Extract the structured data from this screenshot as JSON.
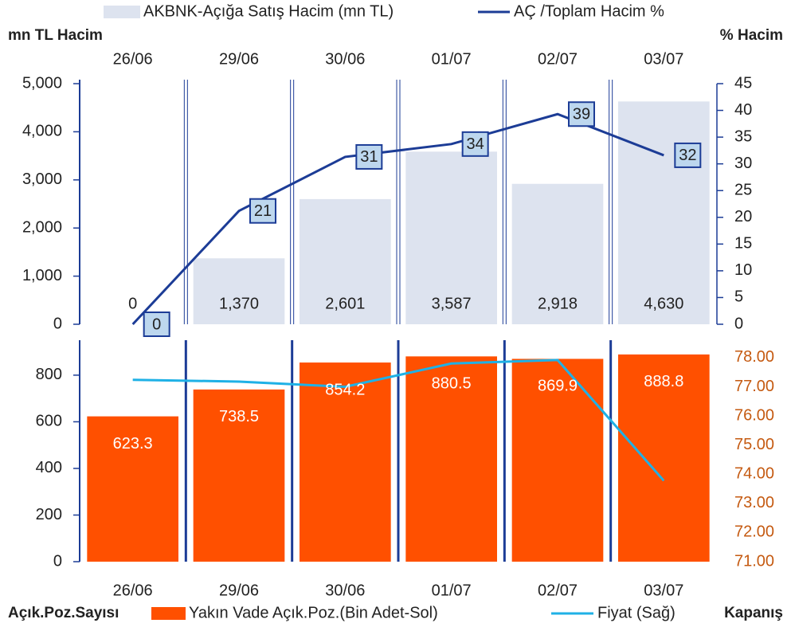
{
  "chart_data": [
    {
      "type": "bar",
      "y_label": "mn TL Hacim",
      "y2_label": "% Hacim",
      "categories": [
        "26/06",
        "29/06",
        "30/06",
        "01/07",
        "02/07",
        "03/07"
      ],
      "series": [
        {
          "name": "AKBNK-Açığa Satış Hacim (mn TL)",
          "type": "bar",
          "color": "#dde3ef",
          "values": [
            0,
            1370,
            2601,
            3587,
            2918,
            4630
          ],
          "value_labels": [
            "0",
            "1,370",
            "2,601",
            "3,587",
            "2,918",
            "4,630"
          ]
        },
        {
          "name": "AÇ /Toplam Hacim %",
          "type": "line",
          "axis": "y2",
          "color": "#1c3c96",
          "values": [
            0,
            21.2,
            31.3,
            33.7,
            39.3,
            31.6
          ],
          "value_labels": [
            "0",
            "21",
            "31",
            "34",
            "39",
            "32"
          ]
        }
      ],
      "ylim": [
        0,
        5000
      ],
      "yticks": [
        0,
        {
          "value": 1000,
          "label": "1,000"
        },
        {
          "value": 2000,
          "label": "2,000"
        },
        {
          "value": 3000,
          "label": "3,000"
        },
        {
          "value": 4000,
          "label": "4,000"
        },
        {
          "value": 5000,
          "label": "5,000"
        }
      ],
      "y2lim": [
        0,
        45
      ],
      "y2ticks": [
        0,
        5,
        10,
        15,
        20,
        25,
        30,
        35,
        40,
        45
      ]
    },
    {
      "type": "bar",
      "y_label": "Açık.Poz.Sayısı",
      "y2_label": "Kapanış",
      "categories": [
        "26/06",
        "29/06",
        "30/06",
        "01/07",
        "02/07",
        "03/07"
      ],
      "series": [
        {
          "name": "Yakın Vade Açık.Poz.(Bin Adet-Sol)",
          "type": "bar",
          "color": "#ff5000",
          "values": [
            623.3,
            738.5,
            854.2,
            880.5,
            869.9,
            888.8
          ]
        },
        {
          "name": "Fiyat (Sağ)",
          "type": "line",
          "axis": "y2",
          "color": "#1fb1e6",
          "values": [
            77.24,
            77.18,
            77.0,
            77.8,
            77.92,
            73.78
          ]
        }
      ],
      "ylim": [
        0,
        950
      ],
      "yticks": [
        0,
        200,
        400,
        600,
        800
      ],
      "y2lim": [
        71,
        78.6
      ],
      "y2ticks": [
        {
          "value": 71,
          "label": "71.00"
        },
        {
          "value": 72,
          "label": "72.00"
        },
        {
          "value": 73,
          "label": "73.00"
        },
        {
          "value": 74,
          "label": "74.00"
        },
        {
          "value": 75,
          "label": "75.00"
        },
        {
          "value": 76,
          "label": "76.00"
        },
        {
          "value": 77,
          "label": "77.00"
        },
        {
          "value": 78,
          "label": "78.00"
        }
      ]
    }
  ]
}
